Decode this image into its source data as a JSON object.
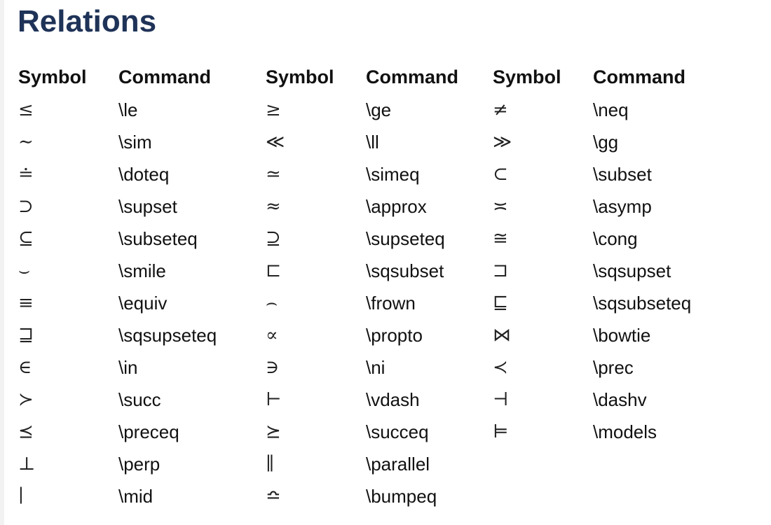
{
  "title": "Relations",
  "headers": [
    "Symbol",
    "Command",
    "Symbol",
    "Command",
    "Symbol",
    "Command"
  ],
  "rows": [
    [
      {
        "symbol": "≤",
        "command": "\\le"
      },
      {
        "symbol": "≥",
        "command": "\\ge"
      },
      {
        "symbol": "≠",
        "command": "\\neq"
      }
    ],
    [
      {
        "symbol": "∼",
        "command": "\\sim"
      },
      {
        "symbol": "≪",
        "command": "\\ll"
      },
      {
        "symbol": "≫",
        "command": "\\gg"
      }
    ],
    [
      {
        "symbol": "≐",
        "command": "\\doteq"
      },
      {
        "symbol": "≃",
        "command": "\\simeq"
      },
      {
        "symbol": "⊂",
        "command": "\\subset"
      }
    ],
    [
      {
        "symbol": "⊃",
        "command": "\\supset"
      },
      {
        "symbol": "≈",
        "command": "\\approx"
      },
      {
        "symbol": "≍",
        "command": "\\asymp"
      }
    ],
    [
      {
        "symbol": "⊆",
        "command": "\\subseteq"
      },
      {
        "symbol": "⊇",
        "command": "\\supseteq"
      },
      {
        "symbol": "≅",
        "command": "\\cong"
      }
    ],
    [
      {
        "symbol": "⌣",
        "command": "\\smile"
      },
      {
        "symbol": "⊏",
        "command": "\\sqsubset"
      },
      {
        "symbol": "⊐",
        "command": "\\sqsupset"
      }
    ],
    [
      {
        "symbol": "≡",
        "command": "\\equiv"
      },
      {
        "symbol": "⌢",
        "command": "\\frown"
      },
      {
        "symbol": "⊑",
        "command": "\\sqsubseteq"
      }
    ],
    [
      {
        "symbol": "⊒",
        "command": "\\sqsupseteq"
      },
      {
        "symbol": "∝",
        "command": "\\propto"
      },
      {
        "symbol": "⋈",
        "command": "\\bowtie"
      }
    ],
    [
      {
        "symbol": "∈",
        "command": "\\in"
      },
      {
        "symbol": "∋",
        "command": "\\ni"
      },
      {
        "symbol": "≺",
        "command": "\\prec"
      }
    ],
    [
      {
        "symbol": "≻",
        "command": "\\succ"
      },
      {
        "symbol": "⊢",
        "command": "\\vdash"
      },
      {
        "symbol": "⊣",
        "command": "\\dashv"
      }
    ],
    [
      {
        "symbol": "⪯",
        "command": "\\preceq"
      },
      {
        "symbol": "⪰",
        "command": "\\succeq"
      },
      {
        "symbol": "⊨",
        "command": "\\models"
      }
    ],
    [
      {
        "symbol": "⊥",
        "command": "\\perp"
      },
      {
        "symbol": "∥",
        "command": "\\parallel"
      },
      {
        "symbol": "",
        "command": ""
      }
    ],
    [
      {
        "symbol": "∣",
        "command": "\\mid"
      },
      {
        "symbol": "≏",
        "command": "\\bumpeq"
      },
      {
        "symbol": "",
        "command": ""
      }
    ]
  ]
}
